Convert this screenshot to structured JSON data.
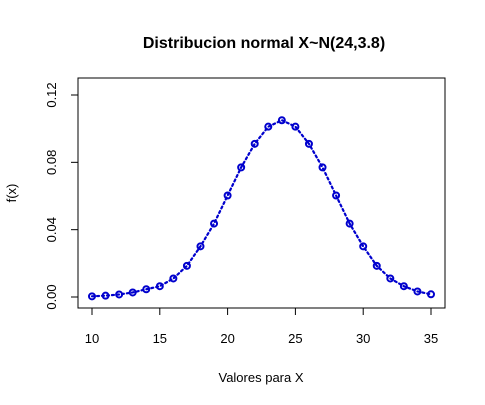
{
  "chart_data": {
    "type": "line",
    "title": "Distribucion normal X~N(24,3.8)",
    "xlabel": "Valores para X",
    "ylabel": "f(x)",
    "xlim": [
      10,
      35
    ],
    "ylim": [
      0,
      0.12
    ],
    "x_ticks": [
      "10",
      "15",
      "20",
      "25",
      "30",
      "35"
    ],
    "y_ticks": [
      "0.00",
      "0.04",
      "0.08",
      "0.12"
    ],
    "grid": false,
    "legend": "none",
    "line_style": "dotted",
    "marker": "open-circle",
    "color": "#0000cd",
    "series": [
      {
        "x": [
          10,
          11,
          12,
          13,
          14,
          15,
          16,
          17,
          18,
          19,
          20,
          21,
          22,
          23,
          24,
          25,
          26,
          27,
          28,
          29,
          30,
          31,
          32,
          33,
          34,
          35
        ],
        "values": [
          0.0004,
          0.0008,
          0.0015,
          0.0027,
          0.0046,
          0.0064,
          0.011,
          0.0185,
          0.0301,
          0.0436,
          0.0603,
          0.077,
          0.091,
          0.1012,
          0.105,
          0.1012,
          0.091,
          0.077,
          0.0603,
          0.0436,
          0.0301,
          0.0185,
          0.011,
          0.0064,
          0.0033,
          0.0016
        ]
      }
    ]
  }
}
